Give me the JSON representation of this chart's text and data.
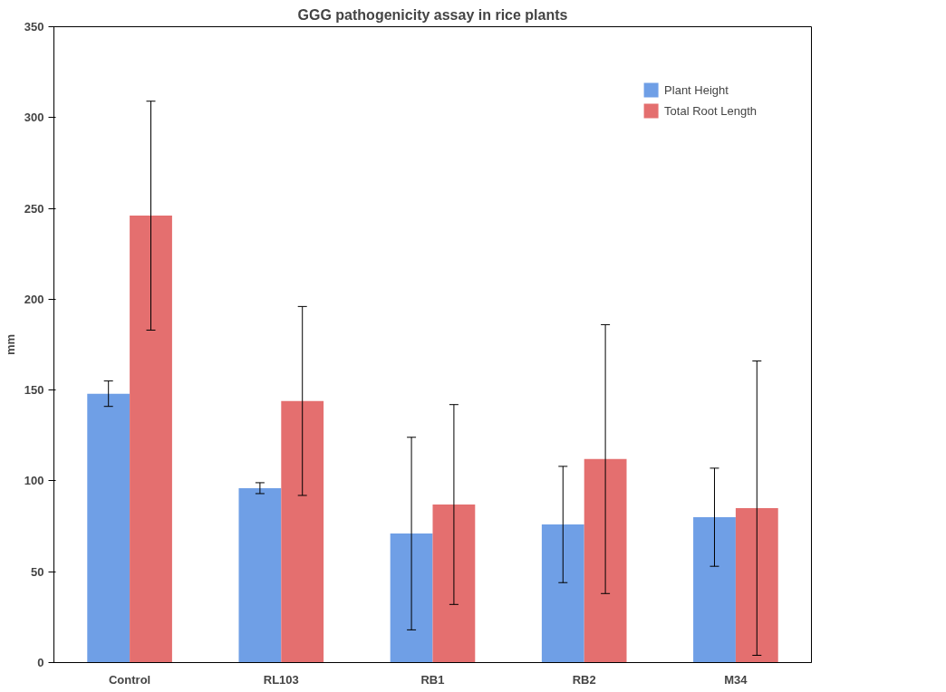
{
  "chart_data": {
    "type": "bar",
    "title": "GGG pathogenicity assay in rice plants",
    "ylabel": "mm",
    "categories": [
      "Control",
      "RL103",
      "RB1",
      "RB2",
      "M34"
    ],
    "series": [
      {
        "name": "Plant Height",
        "color": "#6f9fe6",
        "values": [
          148,
          96,
          71,
          76,
          80
        ],
        "errors": [
          7,
          3,
          53,
          32,
          27
        ]
      },
      {
        "name": "Total Root Length",
        "color": "#e46f6f",
        "values": [
          246,
          144,
          87,
          112,
          85
        ],
        "errors": [
          63,
          52,
          55,
          74,
          81
        ]
      }
    ],
    "ylim": [
      0,
      350
    ],
    "yticks": [
      0,
      50,
      100,
      150,
      200,
      250,
      300,
      350
    ],
    "grid": false,
    "legend": "top right"
  }
}
